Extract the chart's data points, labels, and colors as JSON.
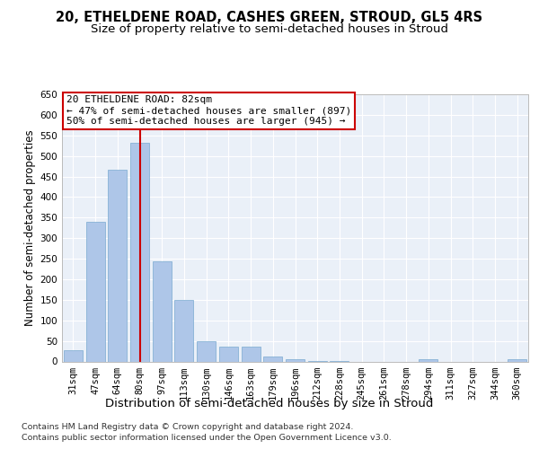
{
  "title_line1": "20, ETHELDENE ROAD, CASHES GREEN, STROUD, GL5 4RS",
  "title_line2": "Size of property relative to semi-detached houses in Stroud",
  "xlabel": "Distribution of semi-detached houses by size in Stroud",
  "ylabel": "Number of semi-detached properties",
  "categories": [
    "31sqm",
    "47sqm",
    "64sqm",
    "80sqm",
    "97sqm",
    "113sqm",
    "130sqm",
    "146sqm",
    "163sqm",
    "179sqm",
    "196sqm",
    "212sqm",
    "228sqm",
    "245sqm",
    "261sqm",
    "278sqm",
    "294sqm",
    "311sqm",
    "327sqm",
    "344sqm",
    "360sqm"
  ],
  "values": [
    27,
    340,
    467,
    533,
    244,
    150,
    50,
    36,
    36,
    13,
    6,
    1,
    1,
    0,
    0,
    0,
    5,
    0,
    0,
    0,
    5
  ],
  "bar_color": "#aec6e8",
  "bar_edge_color": "#7aaad0",
  "vline_x_index": 3,
  "vline_color": "#cc0000",
  "annotation_box_text": "20 ETHELDENE ROAD: 82sqm\n← 47% of semi-detached houses are smaller (897)\n50% of semi-detached houses are larger (945) →",
  "annotation_box_color": "#cc0000",
  "ylim": [
    0,
    650
  ],
  "yticks": [
    0,
    50,
    100,
    150,
    200,
    250,
    300,
    350,
    400,
    450,
    500,
    550,
    600,
    650
  ],
  "footer_line1": "Contains HM Land Registry data © Crown copyright and database right 2024.",
  "footer_line2": "Contains public sector information licensed under the Open Government Licence v3.0.",
  "bg_color": "#ffffff",
  "plot_bg_color": "#eaf0f8",
  "grid_color": "#ffffff",
  "title_fontsize": 10.5,
  "subtitle_fontsize": 9.5,
  "tick_fontsize": 7.5,
  "ylabel_fontsize": 8.5,
  "xlabel_fontsize": 9.5,
  "annotation_fontsize": 8.0,
  "footer_fontsize": 6.8
}
